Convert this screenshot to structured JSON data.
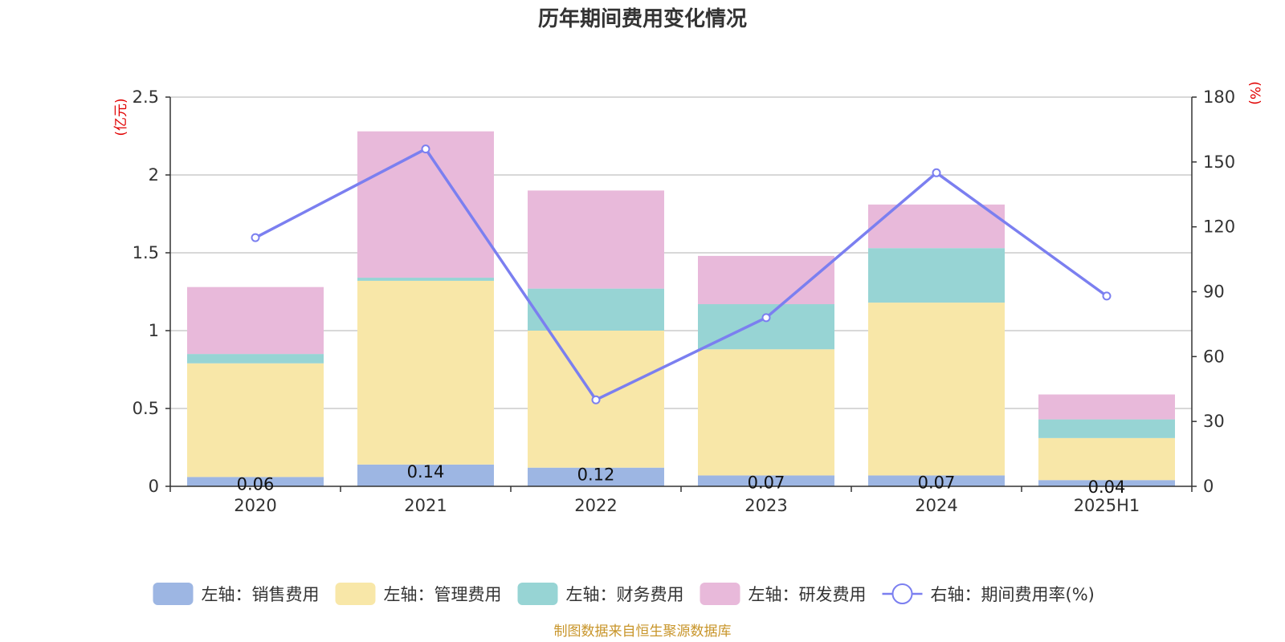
{
  "chart_data": {
    "type": "bar",
    "stacked": true,
    "title": "历年期间费用变化情况",
    "categories": [
      "2020",
      "2021",
      "2022",
      "2023",
      "2024",
      "2025H1"
    ],
    "left_axis": {
      "unit": "(亿元)",
      "ylim": [
        0,
        2.5
      ],
      "ticks": [
        "0",
        "0.5",
        "1",
        "1.5",
        "2",
        "2.5"
      ],
      "tick_values": [
        0,
        0.5,
        1,
        1.5,
        2,
        2.5
      ]
    },
    "right_axis": {
      "unit": "(%)",
      "ylim": [
        0,
        180
      ],
      "ticks": [
        "0",
        "30",
        "60",
        "90",
        "120",
        "150",
        "180"
      ],
      "tick_values": [
        0,
        30,
        60,
        90,
        120,
        150,
        180
      ]
    },
    "series": [
      {
        "name": "左轴：销售费用",
        "axis": "left",
        "type": "bar",
        "color": "#9db6e3",
        "values": [
          0.06,
          0.14,
          0.12,
          0.07,
          0.07,
          0.04
        ],
        "labels": [
          "0.06",
          "0.14",
          "0.12",
          "0.07",
          "0.07",
          "0.04"
        ]
      },
      {
        "name": "左轴：管理费用",
        "axis": "left",
        "type": "bar",
        "color": "#f8e7a8",
        "values": [
          0.73,
          1.18,
          0.88,
          0.81,
          1.11,
          0.27
        ]
      },
      {
        "name": "左轴：财务费用",
        "axis": "left",
        "type": "bar",
        "color": "#97d4d4",
        "values": [
          0.06,
          0.02,
          0.27,
          0.29,
          0.35,
          0.12
        ]
      },
      {
        "name": "左轴：研发费用",
        "axis": "left",
        "type": "bar",
        "color": "#e8b9da",
        "values": [
          0.43,
          0.94,
          0.63,
          0.31,
          0.28,
          0.16
        ]
      },
      {
        "name": "右轴：期间费用率(%)",
        "axis": "right",
        "type": "line",
        "color": "#7b7ff0",
        "values": [
          115,
          156,
          40,
          78,
          145,
          88
        ]
      }
    ],
    "grid": true,
    "legend_position": "bottom"
  },
  "source": "制图数据来自恒生聚源数据库"
}
